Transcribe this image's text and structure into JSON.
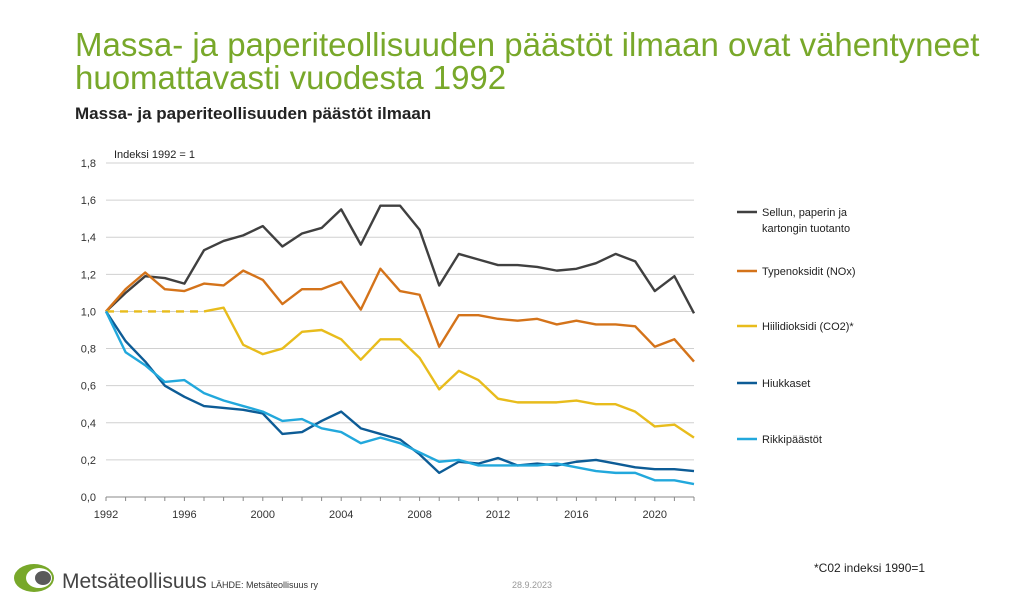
{
  "title": "Massa- ja paperiteollisuuden päästöt ilmaan ovat vähentyneet huomattavasti vuodesta 1992",
  "subtitle": "Massa- ja paperiteollisuuden päästöt ilmaan",
  "footnote": "*C02 indeksi 1990=1",
  "brand": "Metsäteollisuus",
  "source": "LÄHDE:  Metsäteollisuus ry",
  "date": "28.9.2023",
  "colors": {
    "title": "#78a82a",
    "production": "#404040",
    "nox": "#d4731a",
    "co2": "#e8bc1c",
    "particles": "#0d5c96",
    "sulfur": "#22a8dc",
    "logo_green": "#78a82a"
  },
  "chart_data": {
    "type": "line",
    "annotation": "Indeksi 1992 = 1",
    "xlim": [
      1992,
      2022
    ],
    "ylim": [
      0,
      1.8
    ],
    "x_ticks": [
      "1992",
      "1996",
      "2000",
      "2004",
      "2008",
      "2012",
      "2016",
      "2020"
    ],
    "y_ticks": [
      "0,0",
      "0,2",
      "0,4",
      "0,6",
      "0,8",
      "1,0",
      "1,2",
      "1,4",
      "1,6",
      "1,8"
    ],
    "grid": "horizontal",
    "legend_position": "right",
    "x": [
      1992,
      1993,
      1994,
      1995,
      1996,
      1997,
      1998,
      1999,
      2000,
      2001,
      2002,
      2003,
      2004,
      2005,
      2006,
      2007,
      2008,
      2009,
      2010,
      2011,
      2012,
      2013,
      2014,
      2015,
      2016,
      2017,
      2018,
      2019,
      2020,
      2021,
      2022
    ],
    "series": [
      {
        "name": "Sellun, paperin ja kartongin tuotanto",
        "legend_lines": [
          "Sellun, paperin ja",
          "kartongin tuotanto"
        ],
        "color_key": "production",
        "values": [
          1.0,
          1.1,
          1.19,
          1.18,
          1.15,
          1.33,
          1.38,
          1.41,
          1.46,
          1.35,
          1.42,
          1.45,
          1.55,
          1.36,
          1.57,
          1.57,
          1.44,
          1.14,
          1.31,
          1.28,
          1.25,
          1.25,
          1.24,
          1.22,
          1.23,
          1.26,
          1.31,
          1.27,
          1.11,
          1.19,
          0.99
        ]
      },
      {
        "name": "Typenoksidit (NOx)",
        "legend_lines": [
          "Typenoksidit (NOx)"
        ],
        "color_key": "nox",
        "values": [
          1.0,
          1.12,
          1.21,
          1.12,
          1.11,
          1.15,
          1.14,
          1.22,
          1.17,
          1.04,
          1.12,
          1.12,
          1.16,
          1.01,
          1.23,
          1.11,
          1.09,
          0.81,
          0.98,
          0.98,
          0.96,
          0.95,
          0.96,
          0.93,
          0.95,
          0.93,
          0.93,
          0.92,
          0.81,
          0.85,
          0.73
        ]
      },
      {
        "name": "Hiilidioksidi (CO2)*",
        "legend_lines": [
          "Hiilidioksidi (CO2)*"
        ],
        "color_key": "co2",
        "dashed_until": 1997,
        "values": [
          1.0,
          1.0,
          1.0,
          1.0,
          1.0,
          1.0,
          1.02,
          0.82,
          0.77,
          0.8,
          0.89,
          0.9,
          0.85,
          0.74,
          0.85,
          0.85,
          0.75,
          0.58,
          0.68,
          0.63,
          0.53,
          0.51,
          0.51,
          0.51,
          0.52,
          0.5,
          0.5,
          0.46,
          0.38,
          0.39,
          0.32
        ]
      },
      {
        "name": "Hiukkaset",
        "legend_lines": [
          "Hiukkaset"
        ],
        "color_key": "particles",
        "values": [
          1.0,
          0.84,
          0.73,
          0.6,
          0.54,
          0.49,
          0.48,
          0.47,
          0.45,
          0.34,
          0.35,
          0.41,
          0.46,
          0.37,
          0.34,
          0.31,
          0.23,
          0.13,
          0.19,
          0.18,
          0.21,
          0.17,
          0.18,
          0.17,
          0.19,
          0.2,
          0.18,
          0.16,
          0.15,
          0.15,
          0.14
        ]
      },
      {
        "name": "Rikkipäästöt",
        "legend_lines": [
          "Rikkipäästöt"
        ],
        "color_key": "sulfur",
        "values": [
          1.0,
          0.78,
          0.71,
          0.62,
          0.63,
          0.56,
          0.52,
          0.49,
          0.46,
          0.41,
          0.42,
          0.37,
          0.35,
          0.29,
          0.32,
          0.29,
          0.24,
          0.19,
          0.2,
          0.17,
          0.17,
          0.17,
          0.17,
          0.18,
          0.16,
          0.14,
          0.13,
          0.13,
          0.09,
          0.09,
          0.07
        ]
      }
    ]
  }
}
